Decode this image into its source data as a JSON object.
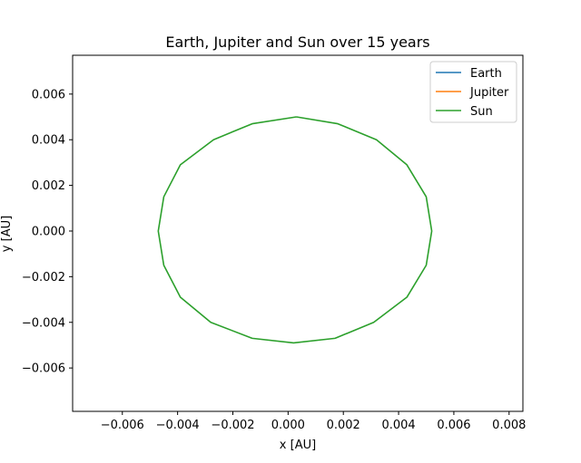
{
  "chart_data": {
    "type": "line",
    "title": "Earth, Jupiter and Sun over 15 years",
    "xlabel": "x [AU]",
    "ylabel": "y [AU]",
    "xlim": [
      -0.0078,
      0.0085
    ],
    "ylim": [
      -0.0079,
      0.0077
    ],
    "xticks": [
      -0.006,
      -0.004,
      -0.002,
      0.0,
      0.002,
      0.004,
      0.006,
      0.008
    ],
    "xtick_labels": [
      "−0.006",
      "−0.004",
      "−0.002",
      "0.000",
      "0.002",
      "0.004",
      "0.006",
      "0.008"
    ],
    "yticks": [
      -0.006,
      -0.004,
      -0.002,
      0.0,
      0.002,
      0.004,
      0.006
    ],
    "ytick_labels": [
      "−0.006",
      "−0.004",
      "−0.002",
      "0.000",
      "0.002",
      "0.004",
      "0.006"
    ],
    "grid": false,
    "legend_location": "top-right",
    "series": [
      {
        "name": "Earth",
        "color": "#1f77b4",
        "x": [],
        "y": []
      },
      {
        "name": "Jupiter",
        "color": "#ff7f0e",
        "x": [],
        "y": []
      },
      {
        "name": "Sun",
        "color": "#2ca02c",
        "x": [
          0.0003,
          0.0018,
          0.0032,
          0.0043,
          0.005,
          0.0052,
          0.005,
          0.0043,
          0.0031,
          0.0017,
          0.0002,
          -0.0013,
          -0.0028,
          -0.0039,
          -0.0045,
          -0.0047,
          -0.0045,
          -0.0039,
          -0.0027,
          -0.0013,
          0.0003
        ],
        "y": [
          0.005,
          0.0047,
          0.004,
          0.0029,
          0.0015,
          0.0,
          -0.0015,
          -0.0029,
          -0.004,
          -0.0047,
          -0.0049,
          -0.0047,
          -0.004,
          -0.0029,
          -0.0015,
          0.0,
          0.0015,
          0.0029,
          0.004,
          0.0047,
          0.005
        ]
      }
    ]
  }
}
